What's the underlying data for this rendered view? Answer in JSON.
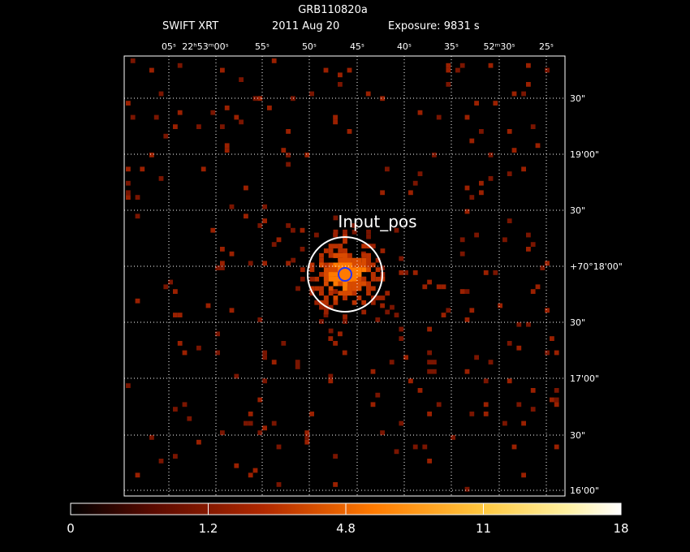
{
  "header": {
    "title": "GRB110820a",
    "instrument": "SWIFT XRT",
    "date": "2011 Aug 20",
    "exposure": "Exposure: 9831 s"
  },
  "ra_labels": [
    "05ˢ",
    "22ʰ53ᵐ00ˢ",
    "55ˢ",
    "50ˢ",
    "45ˢ",
    "40ˢ",
    "35ˢ",
    "52ᵐ30ˢ",
    "25ˢ"
  ],
  "dec_labels": [
    "30\"",
    "19'00\"",
    "30\"",
    "+70°18'00\"",
    "30\"",
    "17'00\"",
    "30\"",
    "16'00\""
  ],
  "annotation": "Input_pos",
  "colorbar_labels": [
    "0",
    "1.2",
    "4.8",
    "11",
    "18"
  ]
}
